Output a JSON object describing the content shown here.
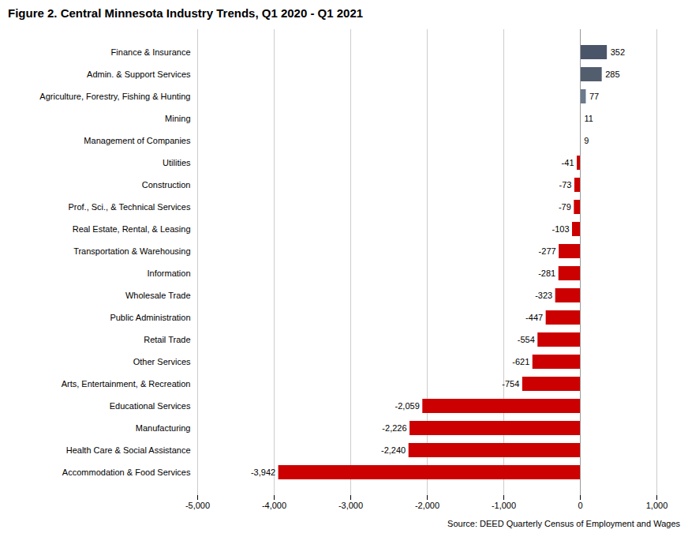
{
  "chart_data": {
    "type": "bar",
    "orientation": "horizontal",
    "title": "Figure 2. Central Minnesota Industry Trends, Q1 2020 - Q1 2021",
    "categories": [
      "Accommodation & Food Services",
      "Health Care & Social Assistance",
      "Manufacturing",
      "Educational Services",
      "Arts, Entertainment, & Recreation",
      "Other Services",
      "Retail Trade",
      "Public Administration",
      "Wholesale Trade",
      "Information",
      "Transportation & Warehousing",
      "Real Estate, Rental, & Leasing",
      "Prof., Sci., & Technical Services",
      "Construction",
      "Utilities",
      "Management of Companies",
      "Mining",
      "Agriculture, Forestry, Fishing & Hunting",
      "Admin. & Support Services",
      "Finance & Insurance"
    ],
    "values": [
      -3942,
      -2240,
      -2226,
      -2059,
      -754,
      -621,
      -554,
      -447,
      -323,
      -281,
      -277,
      -103,
      -79,
      -73,
      -41,
      9,
      11,
      77,
      285,
      352
    ],
    "value_labels": [
      "-3,942",
      "-2,240",
      "-2,226",
      "-2,059",
      "-754",
      "-621",
      "-554",
      "-447",
      "-323",
      "-281",
      "-277",
      "-103",
      "-79",
      "-73",
      "-41",
      "9",
      "11",
      "77",
      "285",
      "352"
    ],
    "colors": [
      "#cc0000",
      "#cc0000",
      "#cc0000",
      "#cc0000",
      "#cc0000",
      "#cc0000",
      "#cc0000",
      "#cc0000",
      "#cc0000",
      "#cc0000",
      "#cc0000",
      "#cc0000",
      "#cc0000",
      "#cc0000",
      "#cc0000",
      "#c8cdd4",
      "#c8cdd4",
      "#6b7a8d",
      "#525e6e",
      "#4a556a"
    ],
    "xlim": [
      -5000,
      1000
    ],
    "xticks": [
      {
        "value": -5000,
        "label": "-5,000"
      },
      {
        "value": -4000,
        "label": "-4,000"
      },
      {
        "value": -3000,
        "label": "-3,000"
      },
      {
        "value": -2000,
        "label": "-2,000"
      },
      {
        "value": -1000,
        "label": "-1,000"
      },
      0,
      {
        "value": 1000,
        "label": "1,000"
      }
    ],
    "grid": true,
    "data_labels": true,
    "annotations": [
      "Source: DEED Quarterly Census of Employment and Wages"
    ]
  }
}
